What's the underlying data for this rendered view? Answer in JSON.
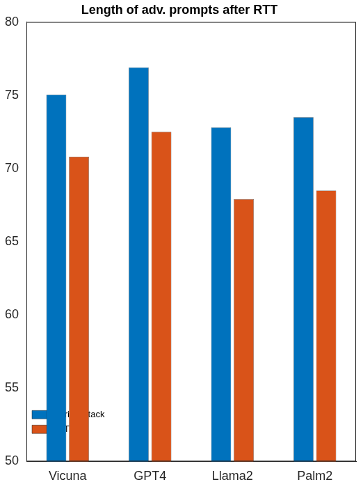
{
  "chart_data": {
    "type": "bar",
    "title": "Length of adv. prompts after RTT",
    "categories": [
      "Vicuna",
      "GPT4",
      "Llama2",
      "Palm2"
    ],
    "series": [
      {
        "name": "Orig. Attack",
        "color": "#0072BD",
        "values": [
          75.05,
          76.9,
          72.8,
          73.5
        ]
      },
      {
        "name": "RTT",
        "color": "#D95319",
        "values": [
          70.8,
          72.5,
          67.9,
          68.5
        ]
      }
    ],
    "ylim": [
      50,
      80
    ],
    "yticks": [
      50,
      55,
      60,
      65,
      70,
      75,
      80
    ],
    "grid": false,
    "legend": "upper right"
  }
}
